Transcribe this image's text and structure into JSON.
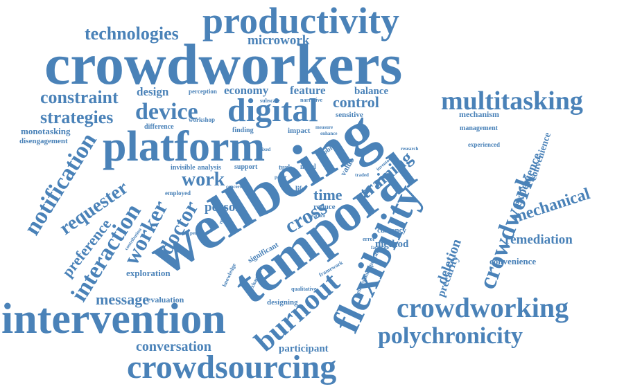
{
  "color": "#4a82b8",
  "words": {
    "productivity": "productivity",
    "crowdworkers": "crowdworkers",
    "technologies": "technologies",
    "microwork": "microwork",
    "constraint": "constraint",
    "design": "design",
    "perception": "perception",
    "economy": "economy",
    "feature": "feature",
    "balance": "balance",
    "multitasking": "multitasking",
    "strategies": "strategies",
    "device": "device",
    "digital": "digital",
    "control": "control",
    "subscale": "subscale",
    "narrative": "narrative",
    "sensitive": "sensitive",
    "mechanism": "mechanism",
    "monotasking": "monotasking",
    "difference": "difference",
    "workshop": "workshop",
    "finding": "finding",
    "impact": "impact",
    "measure": "measure",
    "enhance": "enhance",
    "management": "management",
    "disengagement": "disengagement",
    "platform": "platform",
    "experienced": "experienced",
    "notification": "notification",
    "mobile": "mobile",
    "mixed": "mixed",
    "research": "research",
    "convenience_v": "convenience",
    "invisible": "invisible",
    "analysis": "analysis",
    "support": "support",
    "requester": "requester",
    "work": "work",
    "turk": "turk",
    "novel": "novel",
    "paper": "paper",
    "inventory": "inventory",
    "traded": "traded",
    "interaction": "interaction",
    "worker": "worker",
    "employed": "employed",
    "life": "life",
    "training": "training",
    "time": "time",
    "reduce": "reduce",
    "concern": "concern",
    "preference": "preference",
    "doctor": "doctor",
    "person": "person",
    "cross": "cross",
    "number": "number",
    "contribution": "contribution",
    "personal": "personal",
    "practice": "practice",
    "wellbeing": "wellbeing",
    "temporal": "temporal",
    "flexibility": "flexibility",
    "crowdwork": "crowdwork",
    "experience": "experience",
    "mechanical": "mechanical",
    "currency": "currency",
    "remediation": "remediation",
    "method": "method",
    "significant": "significant",
    "facilitate": "facilitate",
    "error": "error",
    "deletion": "deletion",
    "precarity": "precarity",
    "convenience": "convenience",
    "exploration": "exploration",
    "message": "message",
    "knowledge": "knowledge",
    "exhaustion": "exhaustion",
    "framework": "framework",
    "environment": "environment",
    "important": "important",
    "evaluation": "evaluation",
    "qualitative": "qualitative",
    "burnout": "burnout",
    "designing": "designing",
    "intervention": "intervention",
    "crowdworking": "crowdworking",
    "polychronicity": "polychronicity",
    "conversation": "conversation",
    "participant": "participant",
    "crowdsourcing": "crowdsourcing",
    "value": "value"
  }
}
